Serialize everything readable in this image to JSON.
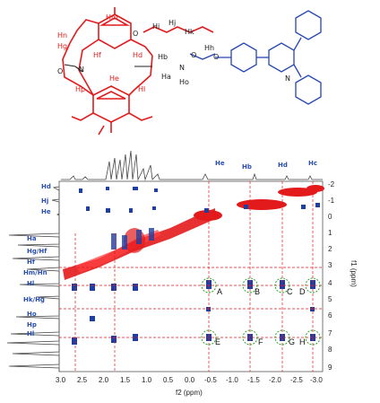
{
  "molecule": {
    "labels_red": [
      "Hm",
      "Hn",
      "Hg",
      "Hf",
      "Hd",
      "Hp",
      "He",
      "Hl",
      "Hi",
      "Hj",
      "Hk"
    ],
    "labels_black": [
      "Hb",
      "Ha",
      "Ho",
      "Hh"
    ],
    "atoms": [
      "O",
      "O",
      "N",
      "O",
      "N",
      "O",
      "O"
    ]
  },
  "spectrum": {
    "xlabel": "f2 (ppm)",
    "ylabel": "f1 (ppm)",
    "x_ticks": [
      "3.0",
      "2.5",
      "2.0",
      "1.5",
      "1.0",
      "0.5",
      "0.0",
      "-0.5",
      "-1.0",
      "-1.5",
      "-2.0",
      "-2.5",
      "-3.0"
    ],
    "y_ticks": [
      "-2",
      "-1",
      "0",
      "1",
      "2",
      "3",
      "4",
      "5",
      "6",
      "7",
      "8",
      "9"
    ],
    "top_headers": [
      "He",
      "Hb",
      "Hd",
      "Hc"
    ],
    "left_headers": [
      "Hd",
      "Hj",
      "He",
      "Ha",
      "Hg/Hf",
      "Hf",
      "Hm/Hn",
      "Hl",
      "Hk/Hg",
      "Ho",
      "Hp",
      "Hl"
    ],
    "cross_peak_labels": [
      "A",
      "B",
      "C",
      "D",
      "E",
      "F",
      "G",
      "H"
    ]
  },
  "colors": {
    "red": "#e31a1c",
    "blue": "#1f3fa0",
    "navy": "#2a4fb0"
  }
}
